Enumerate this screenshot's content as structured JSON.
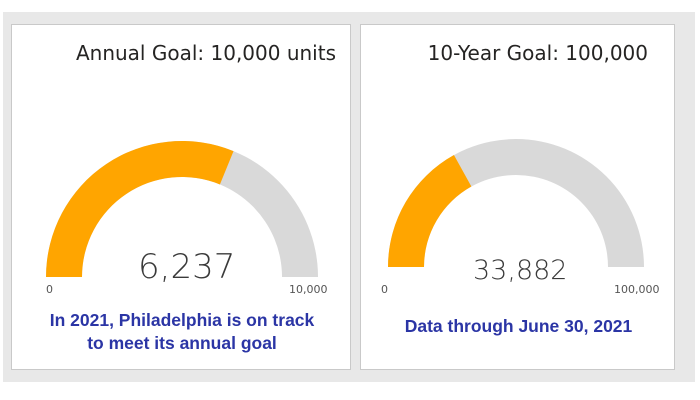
{
  "gauges": [
    {
      "title": "Annual Goal: 10,000 units",
      "value_label": "6,237",
      "min_label": "0",
      "max_label": "10,000",
      "note_line1": "In 2021, Philadelphia is on track",
      "note_line2": "to meet its annual goal"
    },
    {
      "title": "10-Year Goal: 100,000",
      "value_label": "33,882",
      "min_label": "0",
      "max_label": "100,000",
      "note_line1": "Data through June 30, 2021",
      "note_line2": ""
    }
  ],
  "chart_data": [
    {
      "type": "gauge",
      "value": 6237,
      "min": 0,
      "max": 10000,
      "fill_color": "#ffa500",
      "track_color": "#d9d9d9"
    },
    {
      "type": "gauge",
      "value": 33882,
      "min": 0,
      "max": 100000,
      "fill_color": "#ffa500",
      "track_color": "#d9d9d9"
    }
  ]
}
